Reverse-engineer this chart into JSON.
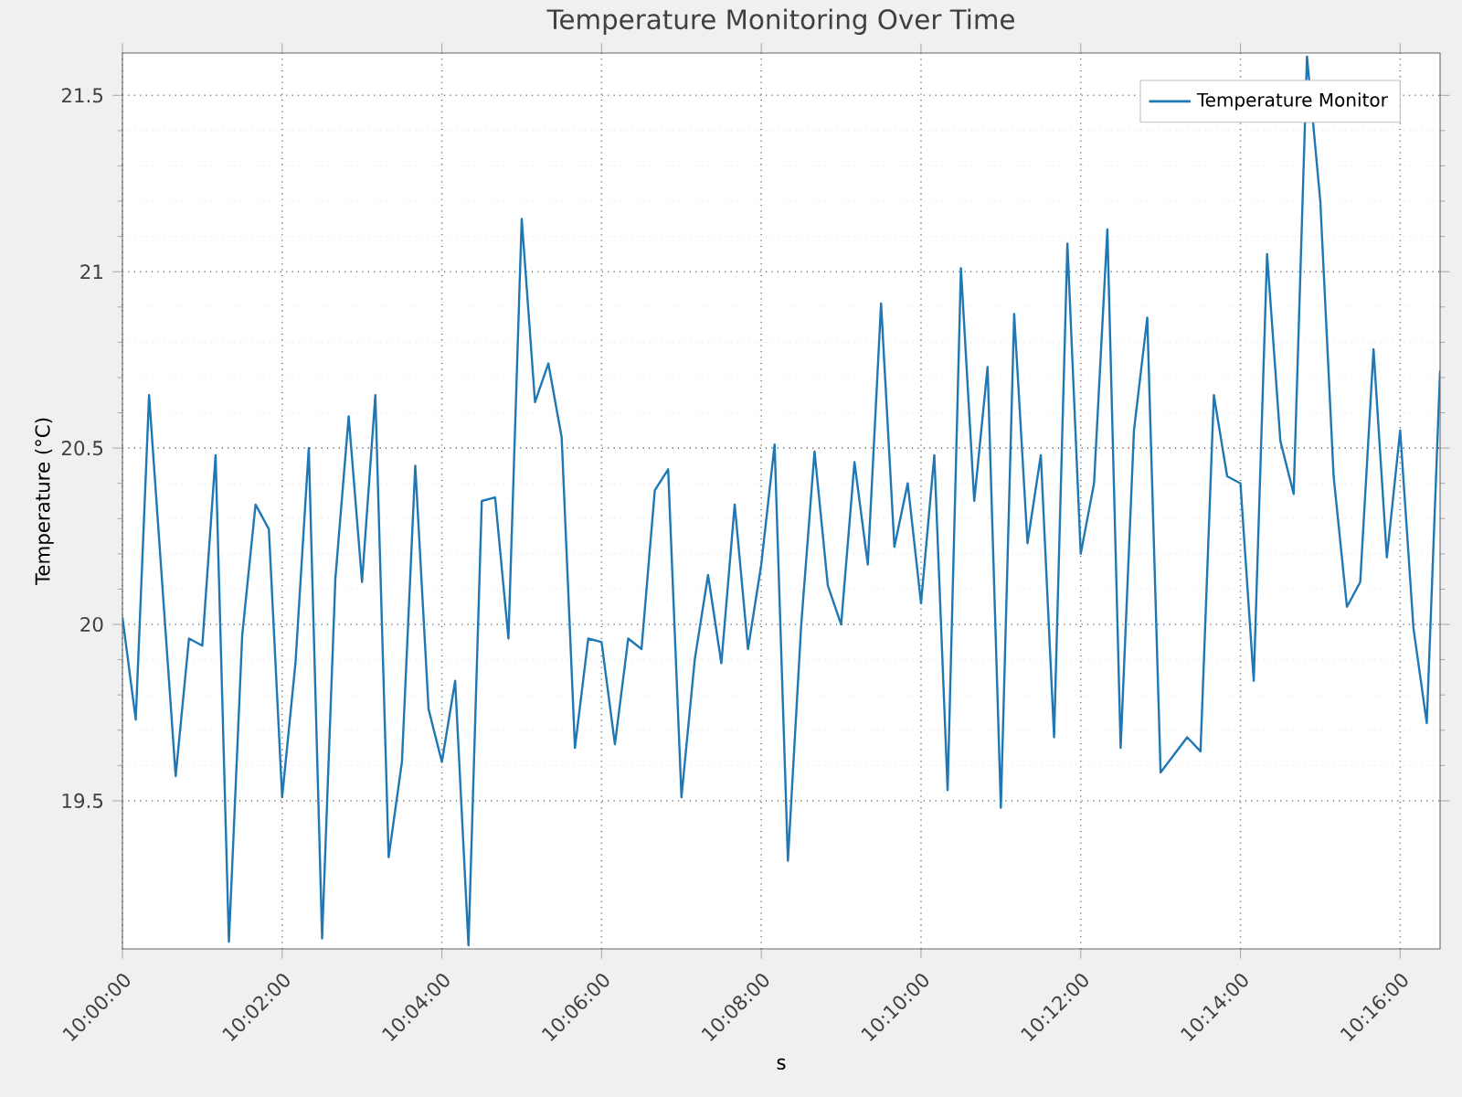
{
  "chart_data": {
    "type": "line",
    "title": "Temperature Monitoring Over Time",
    "xlabel": "s",
    "ylabel": "Temperature (°C)",
    "x": [
      10,
      10.00278,
      10.00556,
      10.00833,
      10.01111,
      10.01389,
      10.01667,
      10.01944,
      10.02222,
      10.025,
      10.02778,
      10.03056,
      10.03333,
      10.03611,
      10.03889,
      10.04167,
      10.04444,
      10.04722,
      10.05,
      10.05278,
      10.05556,
      10.05833,
      10.06111,
      10.06389,
      10.06667,
      10.06944,
      10.07222,
      10.075,
      10.07778,
      10.08056,
      10.08333,
      10.08611,
      10.08889,
      10.09167,
      10.09444,
      10.09722,
      10.1,
      10.10278,
      10.10556,
      10.10833,
      10.11111,
      10.11389,
      10.11667,
      10.11944,
      10.12222,
      10.125,
      10.12778,
      10.13056,
      10.13333,
      10.13611,
      10.13889,
      10.14167,
      10.14444,
      10.14722,
      10.15,
      10.15278,
      10.15556,
      10.15833,
      10.16111,
      10.16389,
      10.16667,
      10.16944,
      10.17222,
      10.175,
      10.17778,
      10.18056,
      10.18333,
      10.18611,
      10.18889,
      10.19167,
      10.19444,
      10.19722,
      10.2,
      10.20278,
      10.20556,
      10.20833,
      10.21111,
      10.21389,
      10.21667,
      10.21944,
      10.22222,
      10.225,
      10.22778,
      10.23056,
      10.23333,
      10.23611,
      10.23889,
      10.24167,
      10.24444,
      10.24722,
      10.25,
      10.25278,
      10.25556,
      10.25833,
      10.26111,
      10.26389,
      10.26667,
      10.26944,
      10.27222,
      10.275
    ],
    "series": [
      {
        "name": "Temperature Monitor",
        "color": "#1f77b4",
        "values": [
          20.02,
          19.73,
          20.65,
          20.11,
          19.57,
          19.96,
          19.94,
          20.48,
          19.1,
          19.97,
          20.34,
          20.27,
          19.51,
          19.89,
          20.5,
          19.11,
          20.13,
          20.59,
          20.12,
          20.65,
          19.34,
          19.61,
          20.45,
          19.76,
          19.61,
          19.84,
          19.09,
          20.35,
          20.36,
          19.96,
          21.15,
          20.63,
          20.74,
          20.53,
          19.65,
          19.96,
          19.95,
          19.66,
          19.96,
          19.93,
          20.38,
          20.44,
          19.51,
          19.9,
          20.14,
          19.89,
          20.34,
          19.93,
          20.17,
          20.51,
          19.33,
          20.0,
          20.49,
          20.11,
          20.0,
          20.46,
          20.17,
          20.91,
          20.22,
          20.4,
          20.06,
          20.48,
          19.53,
          21.01,
          20.35,
          20.73,
          19.48,
          20.88,
          20.23,
          20.48,
          19.68,
          21.08,
          20.2,
          20.4,
          21.12,
          19.65,
          20.55,
          20.87,
          19.58,
          19.63,
          19.68,
          19.64,
          20.65,
          20.42,
          20.4,
          19.84,
          21.05,
          20.52,
          20.37,
          21.61,
          21.2,
          20.42,
          20.05,
          20.12,
          20.78,
          20.19,
          20.55,
          19.99,
          19.72,
          20.72
        ]
      }
    ],
    "xlim": [
      10,
      10.275
    ],
    "ylim": [
      19.08,
      21.62
    ],
    "xticks": [
      {
        "value": 10,
        "label": "10:00:00"
      },
      {
        "value": 10.03333,
        "label": "10:02:00"
      },
      {
        "value": 10.06667,
        "label": "10:04:00"
      },
      {
        "value": 10.1,
        "label": "10:06:00"
      },
      {
        "value": 10.13333,
        "label": "10:08:00"
      },
      {
        "value": 10.16667,
        "label": "10:10:00"
      },
      {
        "value": 10.2,
        "label": "10:12:00"
      },
      {
        "value": 10.23333,
        "label": "10:14:00"
      },
      {
        "value": 10.26667,
        "label": "10:16:00"
      }
    ],
    "yticks": [
      19.5,
      20,
      20.5,
      21,
      21.5
    ],
    "grid": true,
    "legend": "top right"
  }
}
